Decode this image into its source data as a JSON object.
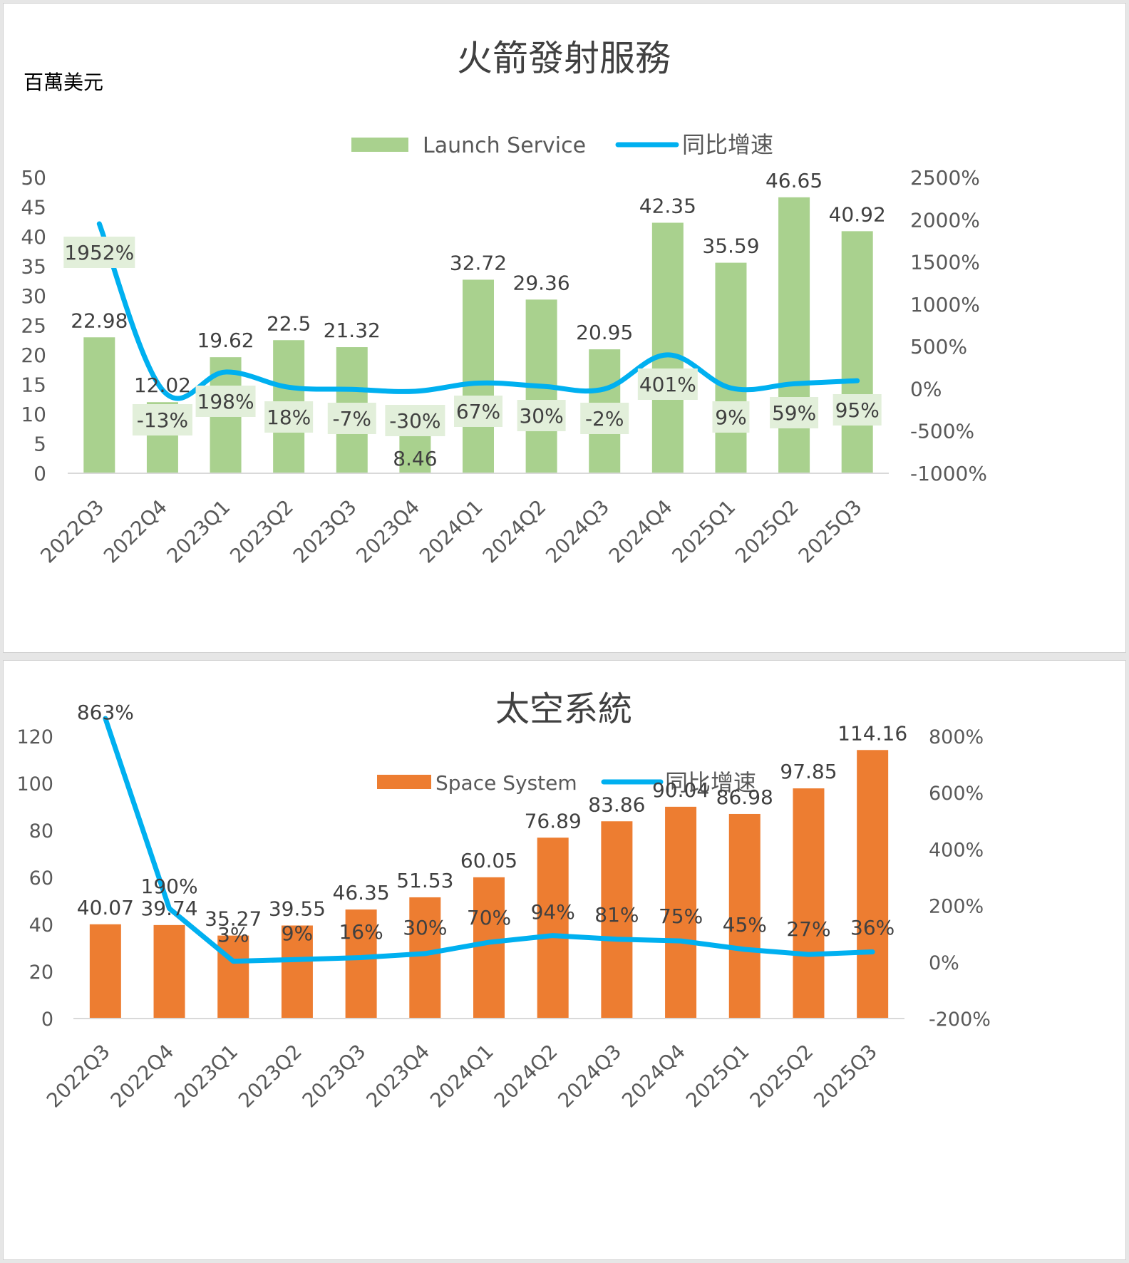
{
  "chart_data": [
    {
      "type": "bar",
      "title": "火箭發射服務",
      "unit_label": "百萬美元",
      "categories": [
        "2022Q3",
        "2022Q4",
        "2023Q1",
        "2023Q2",
        "2023Q3",
        "2023Q4",
        "2024Q1",
        "2024Q2",
        "2024Q3",
        "2024Q4",
        "2025Q1",
        "2025Q2",
        "2025Q3"
      ],
      "series": [
        {
          "name": "Launch Service",
          "kind": "bar",
          "axis": "left",
          "values": [
            22.98,
            12.02,
            19.62,
            22.5,
            21.32,
            8.46,
            32.72,
            29.36,
            20.95,
            42.35,
            35.59,
            46.65,
            40.92
          ]
        },
        {
          "name": "同比增速",
          "kind": "line",
          "axis": "right",
          "values": [
            1952,
            -13,
            198,
            18,
            -7,
            -30,
            67,
            30,
            -2,
            401,
            9,
            59,
            95
          ],
          "labels": [
            "1952%",
            "-13%",
            "198%",
            "18%",
            "-7%",
            "-30%",
            "67%",
            "30%",
            "-2%",
            "401%",
            "9%",
            "59%",
            "95%"
          ]
        }
      ],
      "ylim": [
        0,
        50
      ],
      "yticks": [
        "0",
        "5",
        "10",
        "15",
        "20",
        "25",
        "30",
        "35",
        "40",
        "45",
        "50"
      ],
      "y2lim": [
        -1000,
        2500
      ],
      "y2ticks": [
        "-1000%",
        "-500%",
        "0%",
        "500%",
        "1000%",
        "1500%",
        "2000%",
        "2500%"
      ],
      "legend": "top-center",
      "colors": {
        "bar": "#a9d18e",
        "line": "#00b0f0",
        "label_bg": "#e2efda"
      }
    },
    {
      "type": "bar",
      "title": "太空系統",
      "categories": [
        "2022Q3",
        "2022Q4",
        "2023Q1",
        "2023Q2",
        "2023Q3",
        "2023Q4",
        "2024Q1",
        "2024Q2",
        "2024Q3",
        "2024Q4",
        "2025Q1",
        "2025Q2",
        "2025Q3"
      ],
      "series": [
        {
          "name": "Space System",
          "kind": "bar",
          "axis": "left",
          "values": [
            40.07,
            39.74,
            35.27,
            39.55,
            46.35,
            51.53,
            60.05,
            76.89,
            83.86,
            90.04,
            86.98,
            97.85,
            114.16
          ]
        },
        {
          "name": "同比增速",
          "kind": "line",
          "axis": "right",
          "values": [
            863,
            190,
            3,
            9,
            16,
            30,
            70,
            94,
            81,
            75,
            45,
            27,
            36
          ],
          "labels": [
            "863%",
            "190%",
            "3%",
            "9%",
            "16%",
            "30%",
            "70%",
            "94%",
            "81%",
            "75%",
            "45%",
            "27%",
            "36%"
          ]
        }
      ],
      "ylim": [
        0,
        120
      ],
      "yticks": [
        "0",
        "20",
        "40",
        "60",
        "80",
        "100",
        "120"
      ],
      "y2lim": [
        -200,
        800
      ],
      "y2ticks": [
        "-200%",
        "0%",
        "200%",
        "400%",
        "600%",
        "800%"
      ],
      "legend": "top-center",
      "colors": {
        "bar": "#ed7d31",
        "line": "#00b0f0"
      }
    }
  ]
}
